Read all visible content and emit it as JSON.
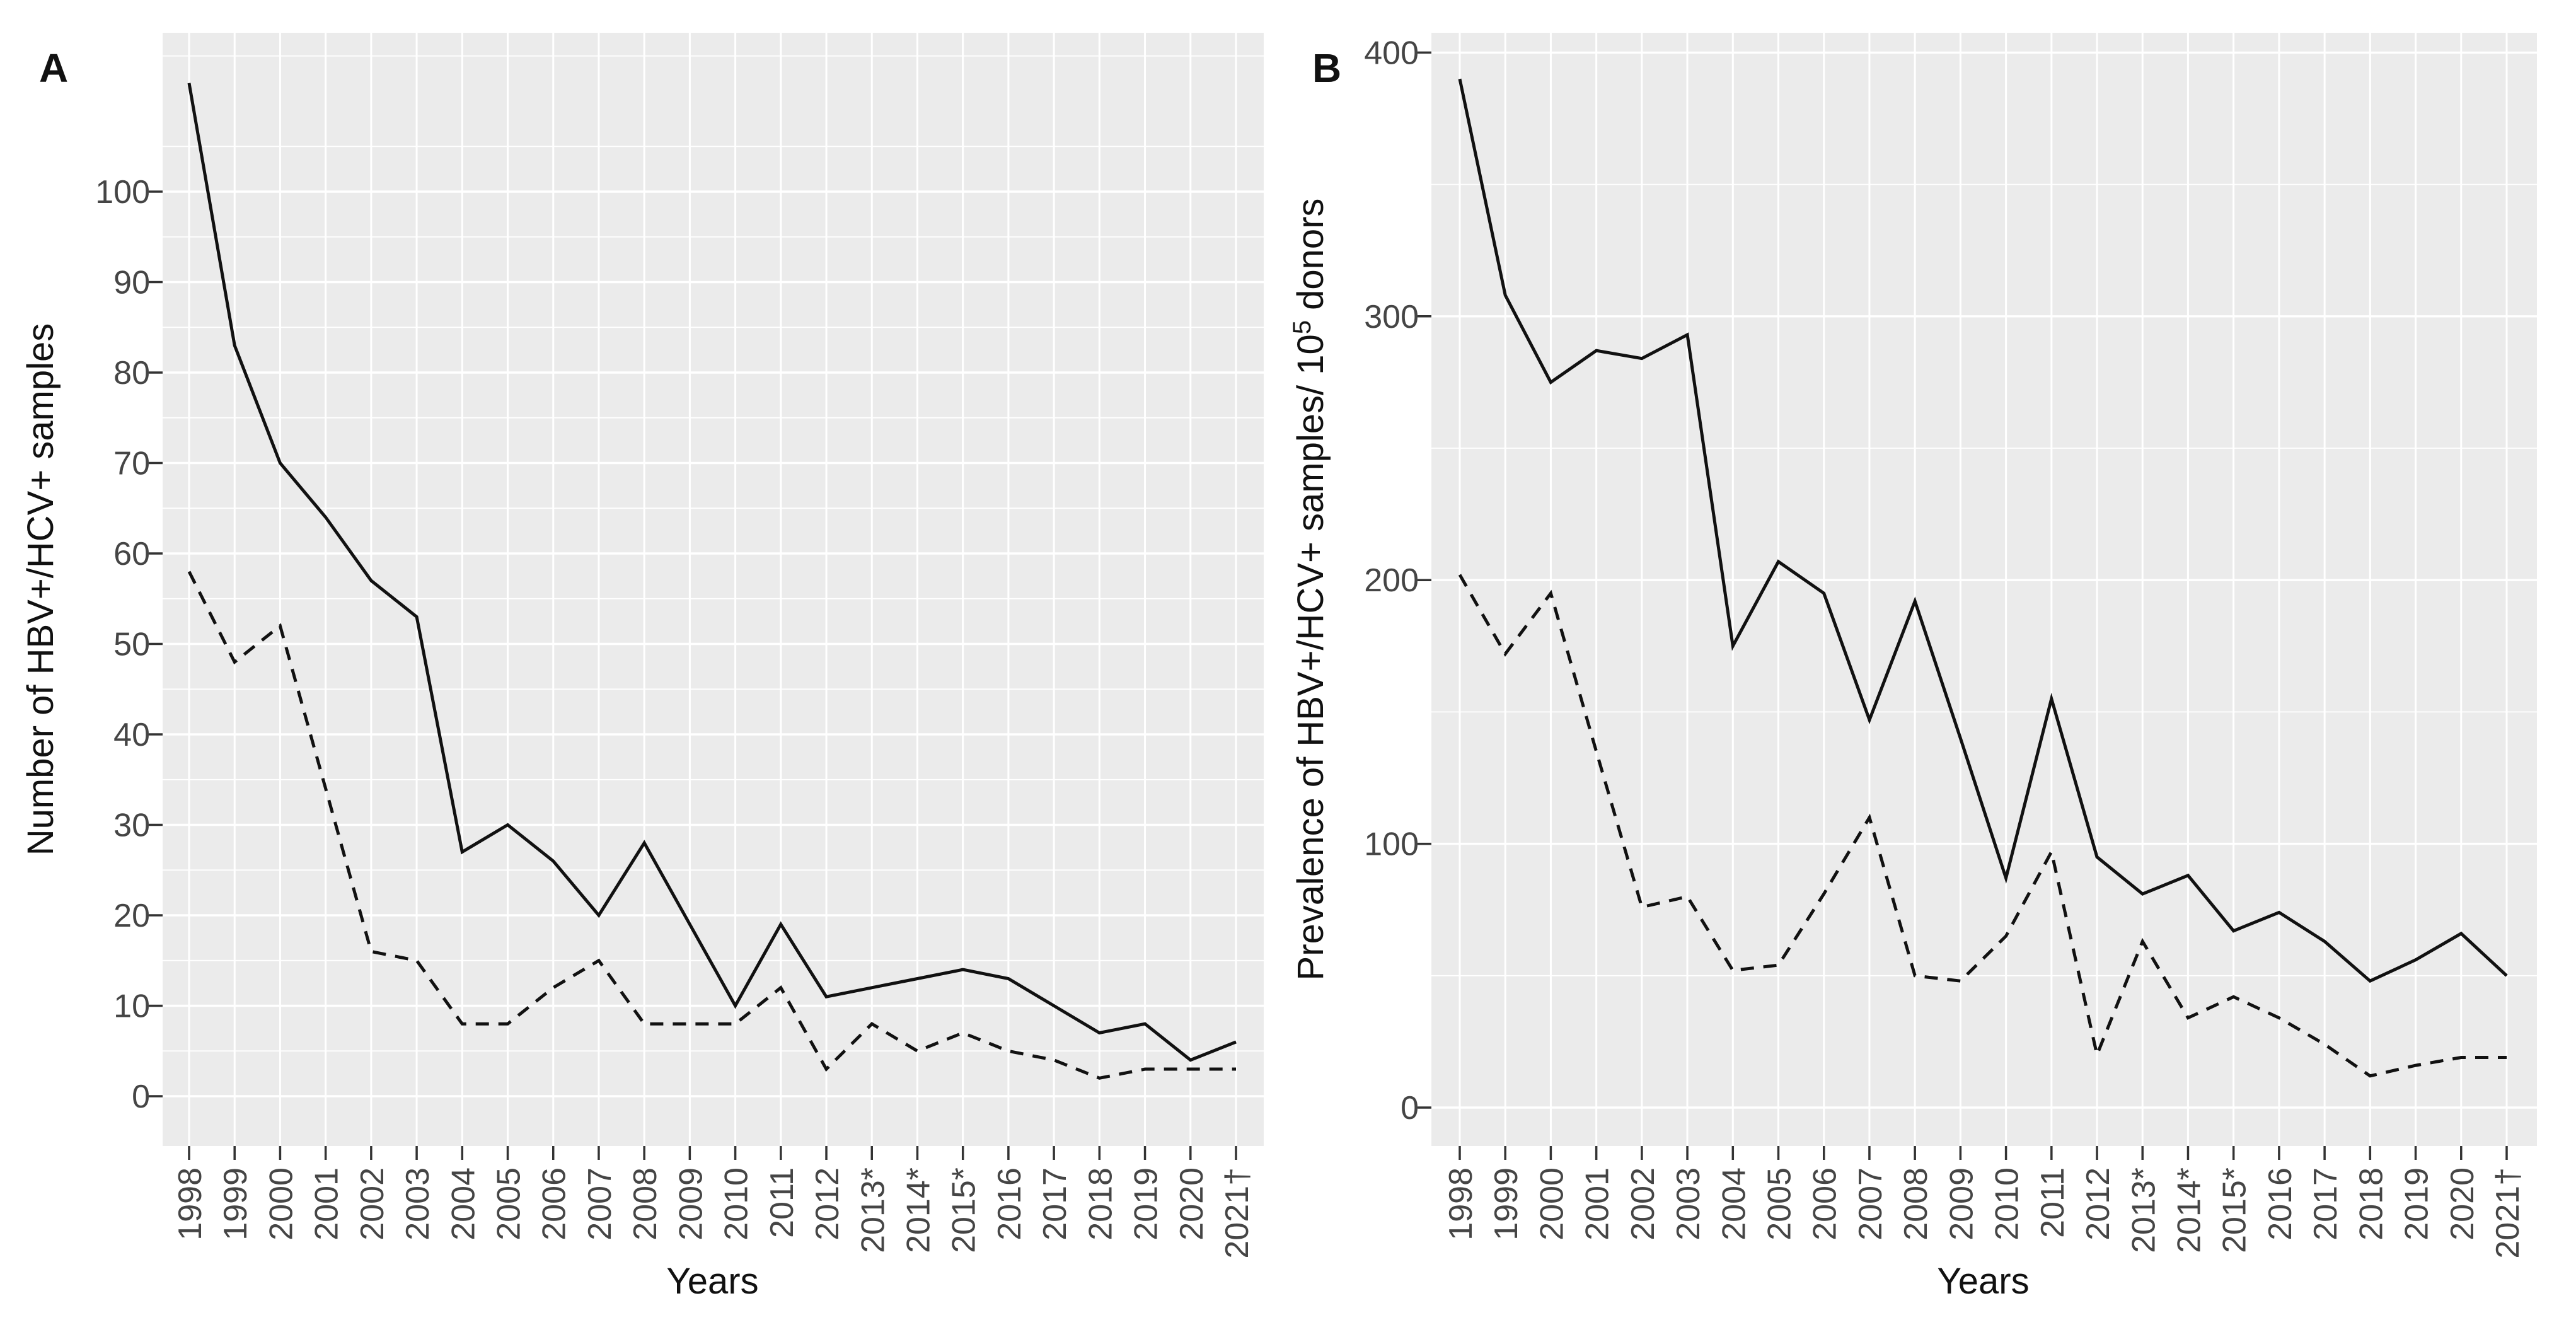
{
  "figure": {
    "kind": "two-panel line chart, ggplot gray theme",
    "panel_a_label": "A",
    "panel_b_label": "B",
    "xlabel": "Years"
  },
  "colors": {
    "panel_background": "#EBEBEB",
    "gridline": "#FFFFFF",
    "series_line": "#111111",
    "tick_text": "#454545",
    "title_text": "#111111"
  },
  "chart_data": [
    {
      "type": "line",
      "panel_label": "A",
      "xlabel": "Years",
      "ylabel": "Number of HBV+/HCV+ samples",
      "x_labels": [
        "1998",
        "1999",
        "2000",
        "2001",
        "2002",
        "2003",
        "2004",
        "2005",
        "2006",
        "2007",
        "2008",
        "2009",
        "2010",
        "2011",
        "2012",
        "2013*",
        "2014*",
        "2015*",
        "2016",
        "2017",
        "2018",
        "2019",
        "2020",
        "2021†"
      ],
      "y_ticks": [
        0,
        10,
        20,
        30,
        40,
        50,
        60,
        70,
        80,
        90,
        100
      ],
      "y_minor": [
        5,
        15,
        25,
        35,
        45,
        55,
        65,
        75,
        85,
        95,
        105,
        115
      ],
      "ylim": [
        0,
        117
      ],
      "grid": true,
      "legend": "none",
      "series": [
        {
          "name": "solid-line",
          "style": "solid",
          "values": [
            112,
            83,
            70,
            64,
            57,
            53,
            27,
            30,
            26,
            20,
            28,
            19,
            10,
            19,
            11,
            12,
            13,
            14,
            13,
            10,
            7,
            8,
            4,
            6
          ]
        },
        {
          "name": "dashed-line",
          "style": "dashed",
          "values": [
            58,
            48,
            52,
            34,
            16,
            15,
            8,
            8,
            12,
            15,
            8,
            8,
            8,
            12,
            3,
            8,
            5,
            7,
            5,
            4,
            2,
            3,
            3,
            3
          ]
        }
      ]
    },
    {
      "type": "line",
      "panel_label": "B",
      "xlabel": "Years",
      "ylabel": "Prevalence of HBV+/HCV+ samples/ 10⁵ donors",
      "ylabel_parts": {
        "prefix": "Prevalence of HBV+/HCV+ samples/ 10",
        "superscript": "5",
        "suffix": " donors"
      },
      "x_labels": [
        "1998",
        "1999",
        "2000",
        "2001",
        "2002",
        "2003",
        "2004",
        "2005",
        "2006",
        "2007",
        "2008",
        "2009",
        "2010",
        "2011",
        "2012",
        "2013*",
        "2014*",
        "2015*",
        "2016",
        "2017",
        "2018",
        "2019",
        "2020",
        "2021†"
      ],
      "y_ticks": [
        0,
        100,
        200,
        300,
        400
      ],
      "y_minor": [
        50,
        150,
        250,
        350
      ],
      "ylim": [
        0,
        409
      ],
      "grid": true,
      "legend": "none",
      "series": [
        {
          "name": "solid-line",
          "style": "solid",
          "values": [
            390,
            308,
            275,
            287,
            284,
            293,
            175,
            207,
            195,
            147,
            192,
            140,
            87,
            155,
            95,
            81,
            88,
            67,
            74,
            63,
            48,
            56,
            66,
            50
          ]
        },
        {
          "name": "dashed-line",
          "style": "dashed",
          "values": [
            202,
            172,
            195,
            135,
            76,
            80,
            52,
            54,
            81,
            110,
            50,
            48,
            65,
            97,
            20,
            63,
            34,
            42,
            34,
            24,
            12,
            16,
            19,
            19
          ]
        }
      ]
    }
  ]
}
